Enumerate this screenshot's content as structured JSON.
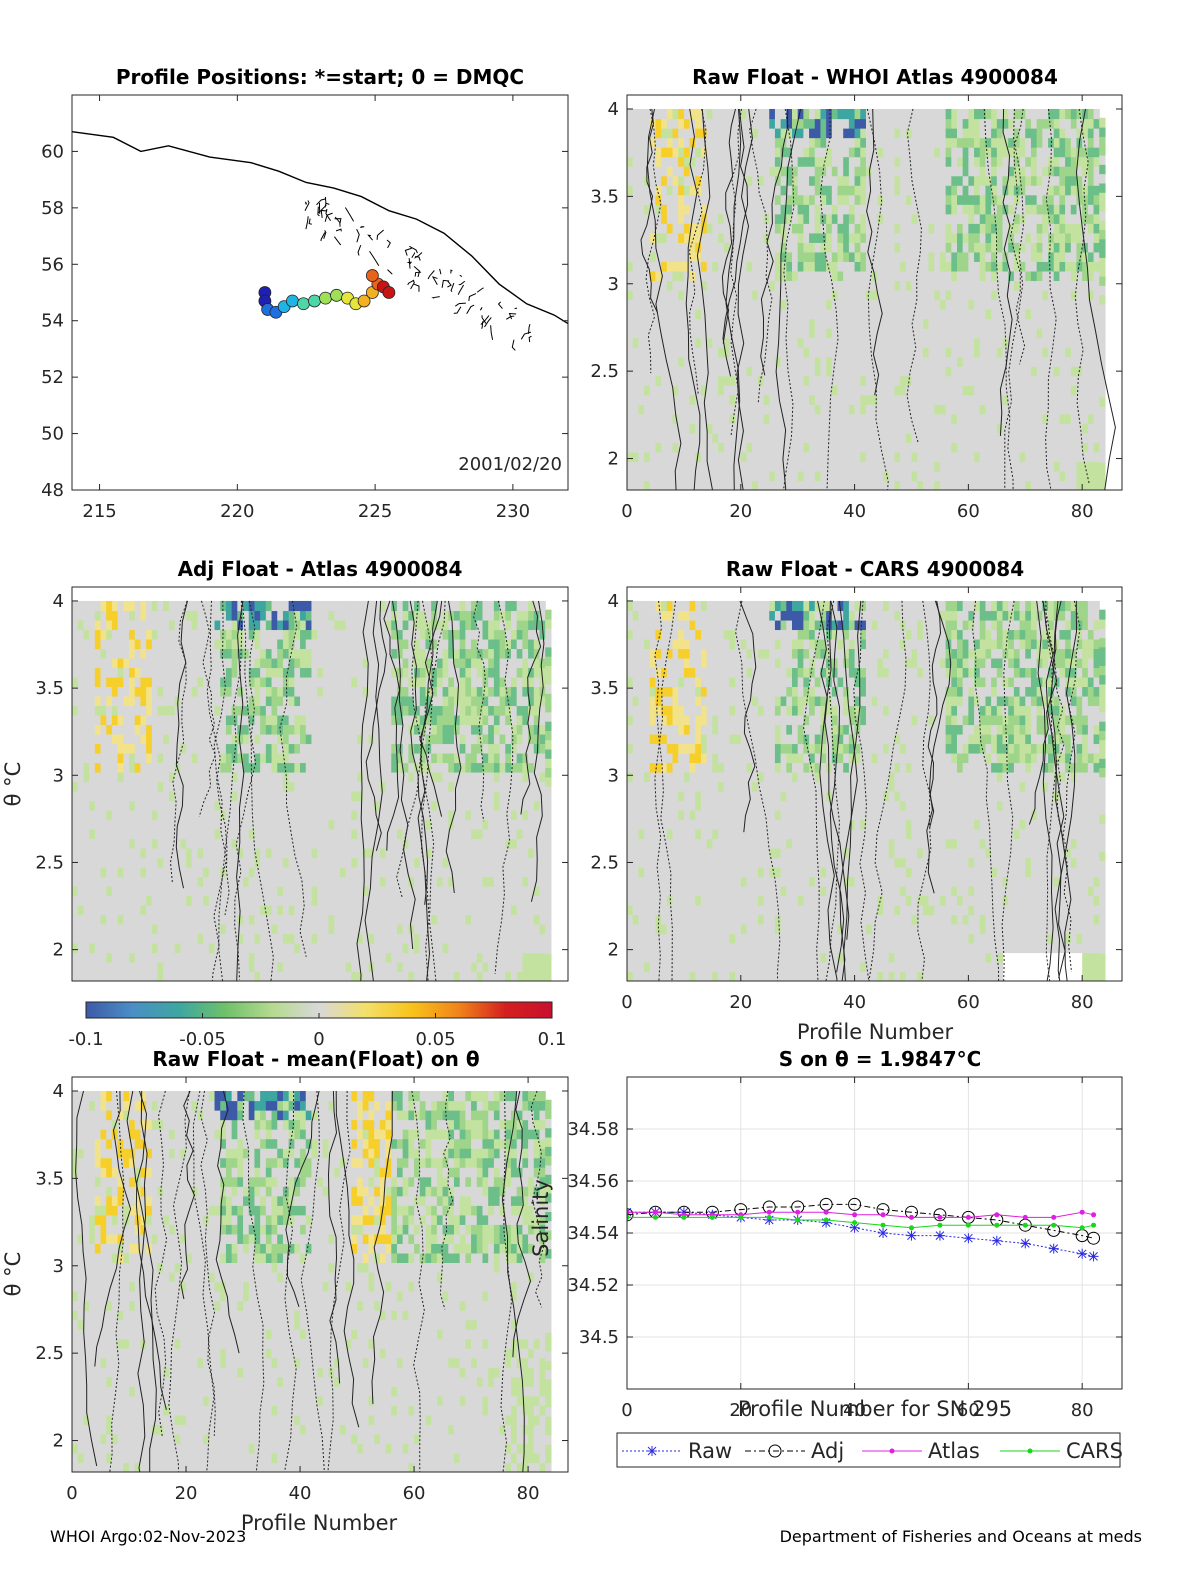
{
  "footer": {
    "left": "WHOI Argo:02-Nov-2023",
    "right": "Department of Fisheries and Oceans at meds"
  },
  "colors": {
    "map_track": [
      "#1f1fb4",
      "#1f6fe0",
      "#1fb4e6",
      "#4fd6a6",
      "#9ee05a",
      "#e6e63a",
      "#f2b022",
      "#e8641c",
      "#c81414"
    ]
  },
  "colorbar": {
    "min": -0.1,
    "max": 0.1,
    "tick_labels": [
      "-0.1",
      "-0.05",
      "0",
      "0.05",
      "0.1"
    ],
    "tick_values": [
      -0.1,
      -0.05,
      0,
      0.05,
      0.1
    ],
    "colors": [
      "#3d5aa8",
      "#4a8fc6",
      "#3ea6a0",
      "#6fc16a",
      "#b5da8f",
      "#d8d8d8",
      "#f3e06a",
      "#f8c21c",
      "#f0841a",
      "#d41f1f",
      "#c8102e"
    ]
  },
  "chart_data": [
    {
      "id": "map",
      "type": "scatter",
      "title": "Profile Positions: *=start; 0 = DMQC",
      "xlim": [
        214,
        232
      ],
      "ylim": [
        48,
        62
      ],
      "x_ticks": [
        215,
        220,
        225,
        230
      ],
      "x_tick_labels": [
        "215",
        "220",
        "225",
        "230"
      ],
      "y_ticks": [
        48,
        50,
        52,
        54,
        56,
        58,
        60
      ],
      "y_tick_labels": [
        "48",
        "50",
        "52",
        "54",
        "56",
        "58",
        "60"
      ],
      "annotation": "2001/02/20",
      "coastline": [
        [
          214,
          60.7
        ],
        [
          215.5,
          60.5
        ],
        [
          216.5,
          60.0
        ],
        [
          217.5,
          60.2
        ],
        [
          219,
          59.8
        ],
        [
          220.5,
          59.6
        ],
        [
          221.5,
          59.3
        ],
        [
          222.5,
          58.9
        ],
        [
          223.5,
          58.7
        ],
        [
          224.5,
          58.4
        ],
        [
          225.5,
          57.9
        ],
        [
          226.5,
          57.6
        ],
        [
          227.5,
          57.1
        ],
        [
          228.5,
          56.3
        ],
        [
          229.5,
          55.3
        ],
        [
          230.5,
          54.6
        ],
        [
          231.5,
          54.2
        ],
        [
          232,
          53.9
        ]
      ],
      "track": [
        [
          221,
          55.0
        ],
        [
          221.0,
          54.7
        ],
        [
          221.1,
          54.4
        ],
        [
          221.4,
          54.3
        ],
        [
          221.7,
          54.5
        ],
        [
          222.0,
          54.7
        ],
        [
          222.4,
          54.6
        ],
        [
          222.8,
          54.7
        ],
        [
          223.2,
          54.8
        ],
        [
          223.6,
          54.9
        ],
        [
          224.0,
          54.8
        ],
        [
          224.3,
          54.6
        ],
        [
          224.6,
          54.7
        ],
        [
          224.9,
          55.0
        ],
        [
          225.1,
          55.3
        ],
        [
          224.9,
          55.6
        ],
        [
          225.3,
          55.2
        ],
        [
          225.5,
          55.0
        ]
      ]
    },
    {
      "id": "raw-whoi",
      "type": "heatmap",
      "title": "Raw Float - WHOI Atlas  4900084",
      "xlim": [
        0,
        87
      ],
      "ylim": [
        1.82,
        4.08
      ],
      "x_ticks": [
        0,
        20,
        40,
        60,
        80
      ],
      "x_tick_labels": [
        "0",
        "20",
        "40",
        "60",
        "80"
      ],
      "y_ticks": [
        2,
        2.5,
        3,
        3.5,
        4
      ],
      "y_tick_labels": [
        "2",
        "2.5",
        "3",
        "3.5",
        "4"
      ],
      "xlabel": "",
      "ylabel": ""
    },
    {
      "id": "adj-atlas",
      "type": "heatmap",
      "title": "Adj Float - Atlas  4900084",
      "xlim": [
        0,
        87
      ],
      "ylim": [
        1.82,
        4.08
      ],
      "x_ticks": [],
      "x_tick_labels": [],
      "y_ticks": [
        2,
        2.5,
        3,
        3.5,
        4
      ],
      "y_tick_labels": [
        "2",
        "2.5",
        "3",
        "3.5",
        "4"
      ],
      "xlabel": "",
      "ylabel": "θ °C"
    },
    {
      "id": "raw-cars",
      "type": "heatmap",
      "title": "Raw Float - CARS  4900084",
      "xlim": [
        0,
        87
      ],
      "ylim": [
        1.82,
        4.08
      ],
      "x_ticks": [
        0,
        20,
        40,
        60,
        80
      ],
      "x_tick_labels": [
        "0",
        "20",
        "40",
        "60",
        "80"
      ],
      "y_ticks": [
        2,
        2.5,
        3,
        3.5,
        4
      ],
      "y_tick_labels": [
        "2",
        "2.5",
        "3",
        "3.5",
        "4"
      ],
      "xlabel": "Profile Number",
      "ylabel": ""
    },
    {
      "id": "raw-mean",
      "type": "heatmap",
      "title": "Raw Float - mean(Float) on θ",
      "xlim": [
        0,
        87
      ],
      "ylim": [
        1.82,
        4.08
      ],
      "x_ticks": [
        0,
        20,
        40,
        60,
        80
      ],
      "x_tick_labels": [
        "0",
        "20",
        "40",
        "60",
        "80"
      ],
      "y_ticks": [
        2,
        2.5,
        3,
        3.5,
        4
      ],
      "y_tick_labels": [
        "2",
        "2.5",
        "3",
        "3.5",
        "4"
      ],
      "xlabel": "Profile Number",
      "ylabel": "θ °C"
    },
    {
      "id": "salinity",
      "type": "line",
      "title": "S on θ = 1.9847°C",
      "xlim": [
        0,
        87
      ],
      "ylim": [
        34.48,
        34.6
      ],
      "x_ticks": [
        0,
        20,
        40,
        60,
        80
      ],
      "x_tick_labels": [
        "0",
        "20",
        "40",
        "60",
        "80"
      ],
      "y_ticks": [
        34.5,
        34.52,
        34.54,
        34.56,
        34.58
      ],
      "y_tick_labels": [
        "34.5",
        "34.52",
        "34.54",
        "34.56",
        "34.58"
      ],
      "xlabel": "Profile Number for SN 295",
      "ylabel": "Salinity",
      "legend_position": "below",
      "series": [
        {
          "name": "Raw",
          "color": "#2a2ae6",
          "x": [
            0,
            5,
            10,
            15,
            20,
            25,
            30,
            35,
            40,
            45,
            50,
            55,
            60,
            65,
            70,
            75,
            80,
            82
          ],
          "y": [
            34.548,
            34.548,
            34.548,
            34.547,
            34.546,
            34.545,
            34.545,
            34.544,
            34.542,
            34.54,
            34.539,
            34.539,
            34.538,
            34.537,
            34.536,
            34.534,
            34.532,
            34.531
          ]
        },
        {
          "name": "Adj",
          "color": "#000000",
          "x": [
            0,
            5,
            10,
            15,
            20,
            25,
            30,
            35,
            40,
            45,
            50,
            55,
            60,
            65,
            70,
            75,
            80,
            82
          ],
          "y": [
            34.547,
            34.548,
            34.548,
            34.548,
            34.549,
            34.55,
            34.55,
            34.551,
            34.551,
            34.549,
            34.548,
            34.547,
            34.546,
            34.545,
            34.543,
            34.541,
            34.539,
            34.538
          ]
        },
        {
          "name": "Atlas",
          "color": "#e020e0",
          "x": [
            0,
            5,
            10,
            15,
            20,
            25,
            30,
            35,
            40,
            45,
            50,
            55,
            60,
            65,
            70,
            75,
            80,
            82
          ],
          "y": [
            34.548,
            34.548,
            34.547,
            34.547,
            34.547,
            34.548,
            34.548,
            34.548,
            34.547,
            34.547,
            34.546,
            34.546,
            34.546,
            34.547,
            34.546,
            34.546,
            34.548,
            34.547
          ]
        },
        {
          "name": "CARS",
          "color": "#18d818",
          "x": [
            0,
            5,
            10,
            15,
            20,
            25,
            30,
            35,
            40,
            45,
            50,
            55,
            60,
            65,
            70,
            75,
            80,
            82
          ],
          "y": [
            34.546,
            34.546,
            34.546,
            34.546,
            34.546,
            34.546,
            34.545,
            34.545,
            34.544,
            34.543,
            34.542,
            34.543,
            34.543,
            34.543,
            34.543,
            34.543,
            34.542,
            34.543
          ]
        }
      ]
    }
  ]
}
